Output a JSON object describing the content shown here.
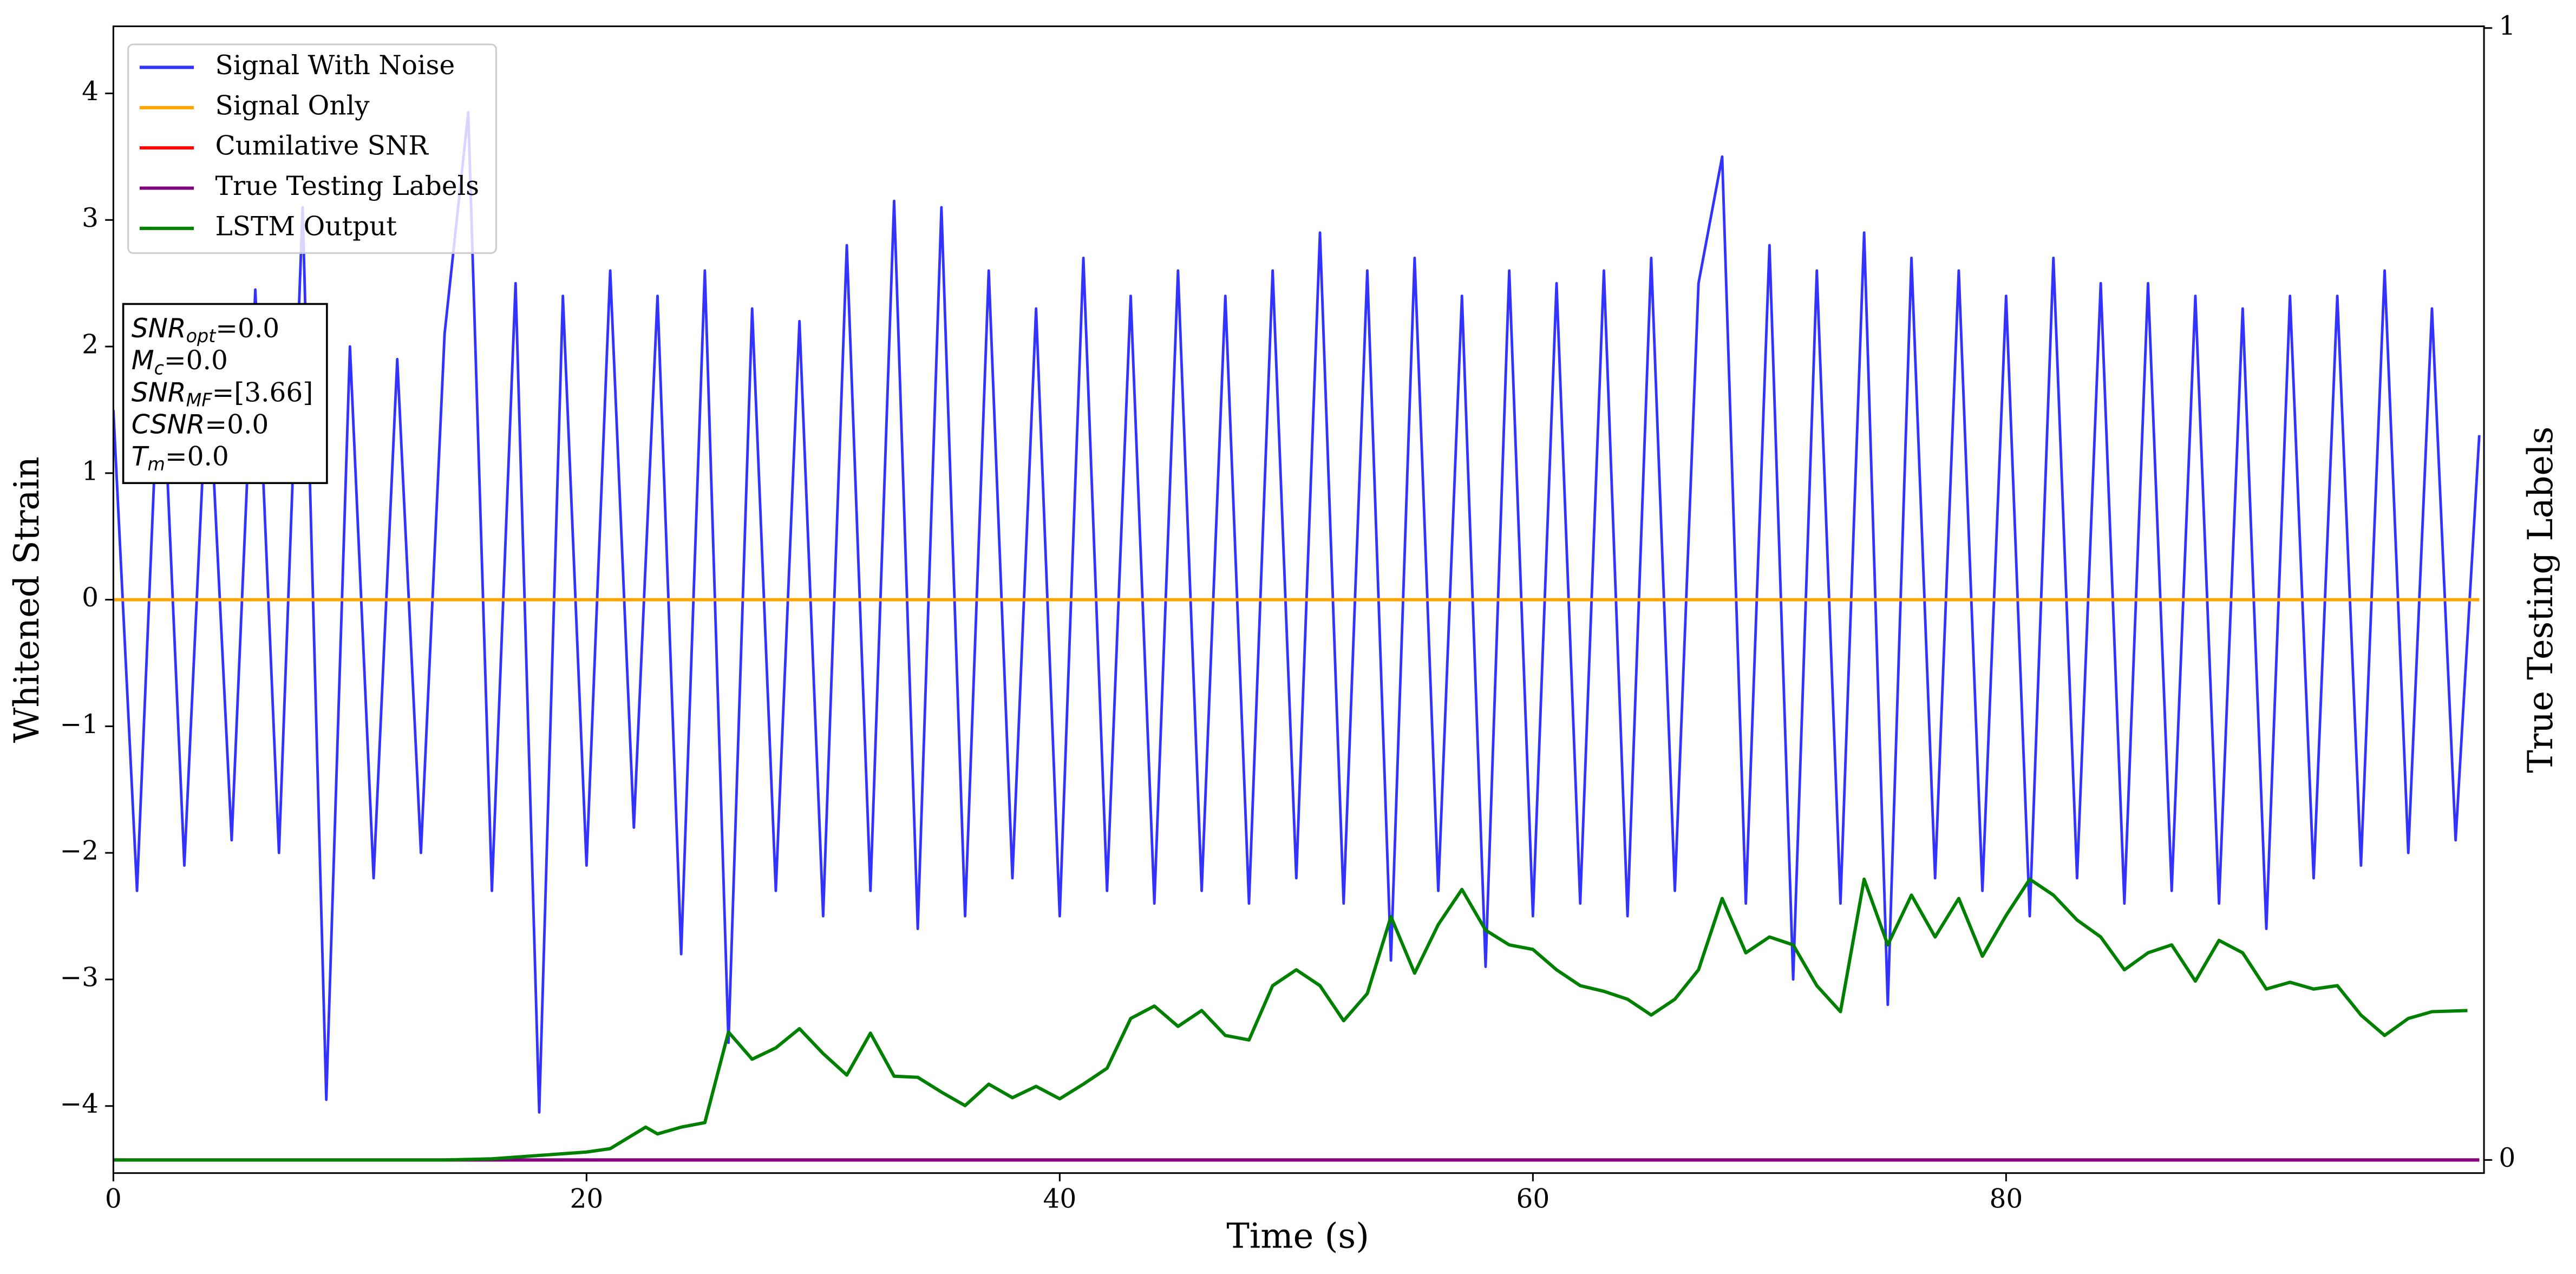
{
  "chart_data": {
    "type": "line",
    "xlabel": "Time (s)",
    "ylabel": "Whitened Strain",
    "y2label": "True Testing Labels",
    "xlim": [
      0,
      100.2
    ],
    "xticks": [
      0,
      20,
      40,
      60,
      80
    ],
    "ylim": [
      -4.53,
      4.53
    ],
    "yticks": [
      {
        "value": -4,
        "label": "−4"
      },
      {
        "value": -3,
        "label": "−3"
      },
      {
        "value": -2,
        "label": "−2"
      },
      {
        "value": -1,
        "label": "−1"
      },
      0,
      1,
      2,
      3,
      4
    ],
    "y2lim": [
      -0.0116,
      1.0015
    ],
    "y2ticks": [
      0,
      1
    ],
    "legend": "upper left",
    "series": [
      {
        "name": "Signal With Noise",
        "color": "#3333ff",
        "x": [
          0,
          1,
          2,
          3,
          4,
          5,
          6,
          7,
          8,
          9,
          10,
          11,
          12,
          13,
          14,
          15,
          16,
          17,
          18,
          19,
          20,
          21,
          22,
          23,
          24,
          25,
          26,
          27,
          28,
          29,
          30,
          31,
          32,
          33,
          34,
          35,
          36,
          37,
          38,
          39,
          40,
          41,
          42,
          43,
          44,
          45,
          46,
          47,
          48,
          49,
          50,
          51,
          52,
          53,
          54,
          55,
          56,
          57,
          58,
          59,
          60,
          61,
          62,
          63,
          64,
          65,
          66,
          67,
          68,
          69,
          70,
          71,
          72,
          73,
          74,
          75,
          76,
          77,
          78,
          79,
          80,
          81,
          82,
          83,
          84,
          85,
          86,
          87,
          88,
          89,
          90,
          91,
          92,
          93,
          94,
          95,
          96,
          97,
          98,
          99,
          100
        ],
        "values": [
          1.5,
          -2.3,
          2.2,
          -2.1,
          1.9,
          -1.9,
          2.45,
          -2.0,
          3.1,
          -3.95,
          2.0,
          -2.2,
          1.9,
          -2.0,
          2.1,
          3.85,
          -2.3,
          2.5,
          -4.05,
          2.4,
          -2.1,
          2.6,
          -1.8,
          2.4,
          -2.8,
          2.6,
          -3.5,
          2.3,
          -2.3,
          2.2,
          -2.5,
          2.8,
          -2.3,
          3.15,
          -2.6,
          3.1,
          -2.5,
          2.6,
          -2.2,
          2.3,
          -2.5,
          2.7,
          -2.3,
          2.4,
          -2.4,
          2.6,
          -2.3,
          2.4,
          -2.4,
          2.6,
          -2.2,
          2.9,
          -2.4,
          2.6,
          -2.85,
          2.7,
          -2.3,
          2.4,
          -2.9,
          2.6,
          -2.5,
          2.5,
          -2.4,
          2.6,
          -2.5,
          2.7,
          -2.3,
          2.5,
          3.5,
          -2.4,
          2.8,
          -3.0,
          2.6,
          -2.4,
          2.9,
          -3.2,
          2.7,
          -2.2,
          2.6,
          -2.3,
          2.4,
          -2.5,
          2.7,
          -2.2,
          2.5,
          -2.4,
          2.5,
          -2.3,
          2.4,
          -2.4,
          2.3,
          -2.6,
          2.4,
          -2.2,
          2.4,
          -2.1,
          2.6,
          -2.0,
          2.3,
          -1.9,
          1.3
        ]
      },
      {
        "name": "Signal Only",
        "color": "#ffa500",
        "x": [
          0,
          100
        ],
        "values": [
          0,
          0
        ]
      },
      {
        "name": "Cumilative SNR",
        "color": "#ff0000",
        "axis": "y2",
        "x": [
          0,
          100
        ],
        "values": [
          0,
          0
        ]
      },
      {
        "name": "True Testing Labels",
        "color": "#800080",
        "axis": "y2",
        "x": [
          0,
          100
        ],
        "values": [
          0,
          0
        ]
      },
      {
        "name": "LSTM Output",
        "color": "#008000",
        "axis": "y2",
        "x": [
          0,
          14,
          16,
          18,
          20,
          21,
          22.5,
          23,
          24,
          25,
          26,
          27,
          28,
          29,
          30,
          31,
          32,
          33,
          34,
          35,
          36,
          37,
          38,
          39,
          40,
          41,
          42,
          43,
          44,
          45,
          46,
          47,
          48,
          49,
          50,
          51,
          52,
          53,
          54,
          55,
          56,
          57,
          58,
          59,
          60,
          61,
          62,
          63,
          64,
          65,
          66,
          67,
          68,
          69,
          70,
          71,
          72,
          73,
          74,
          75,
          76,
          77,
          78,
          79,
          80,
          81,
          82,
          83,
          84,
          85,
          86,
          87,
          88,
          89,
          90,
          91,
          92,
          93,
          94,
          95,
          96,
          97,
          98,
          99.5
        ],
        "values": [
          0,
          0,
          0.001,
          0.004,
          0.007,
          0.01,
          0.029,
          0.023,
          0.029,
          0.033,
          0.113,
          0.089,
          0.099,
          0.116,
          0.094,
          0.075,
          0.112,
          0.074,
          0.073,
          0.06,
          0.048,
          0.067,
          0.055,
          0.065,
          0.054,
          0.067,
          0.081,
          0.125,
          0.136,
          0.118,
          0.132,
          0.11,
          0.106,
          0.154,
          0.168,
          0.154,
          0.123,
          0.147,
          0.215,
          0.165,
          0.208,
          0.239,
          0.203,
          0.19,
          0.186,
          0.168,
          0.154,
          0.149,
          0.142,
          0.128,
          0.142,
          0.168,
          0.231,
          0.183,
          0.197,
          0.19,
          0.154,
          0.131,
          0.248,
          0.19,
          0.234,
          0.197,
          0.231,
          0.18,
          0.216,
          0.248,
          0.234,
          0.212,
          0.197,
          0.168,
          0.183,
          0.19,
          0.158,
          0.194,
          0.183,
          0.151,
          0.157,
          0.151,
          0.154,
          0.128,
          0.11,
          0.125,
          0.131,
          0.132
        ]
      }
    ],
    "annotation": [
      {
        "main": "SNR",
        "sub": "opt",
        "rest": "=0.0"
      },
      {
        "main": "M",
        "sub": "c",
        "rest": "=0.0"
      },
      {
        "main": "SNR",
        "sub": "MF",
        "rest": "=[3.66]"
      },
      {
        "main": "CSNR",
        "rest": "=0.0"
      },
      {
        "main": "T",
        "sub": "m",
        "rest": "=0.0"
      }
    ]
  }
}
